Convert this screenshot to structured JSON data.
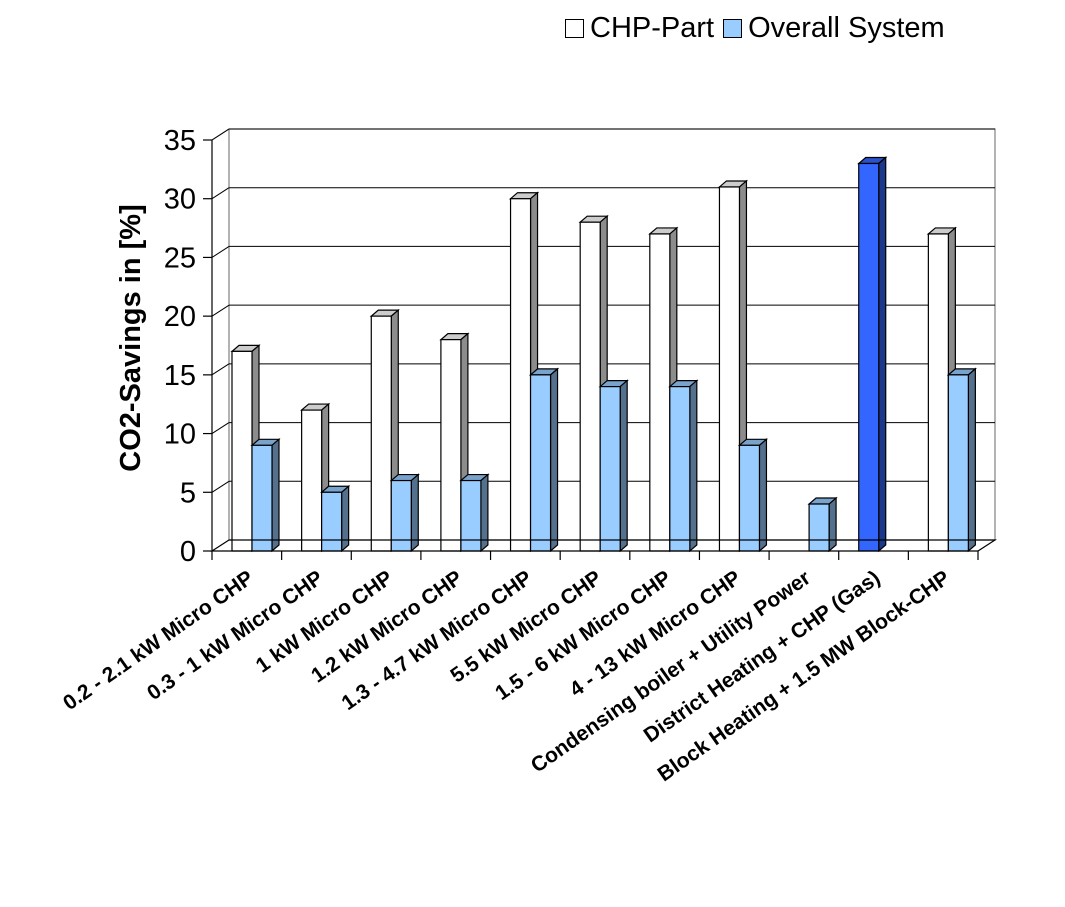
{
  "chart_data": {
    "type": "bar",
    "categories": [
      "0.2 - 2.1 kW Micro CHP",
      "0.3 - 1 kW Micro CHP",
      "1 kW Micro CHP",
      "1.2 kW Micro CHP",
      "1.3 - 4.7 kW Micro CHP",
      "5.5 kW Micro CHP",
      "1.5 - 6 kW Micro CHP",
      "4 - 13 kW Micro CHP",
      "Condensing boiler + Utility Power",
      "District Heating + CHP (Gas)",
      "Block Heating + 1.5 MW Block-CHP"
    ],
    "series": [
      {
        "name": "CHP-Part",
        "values": [
          17,
          12,
          20,
          18,
          30,
          28,
          27,
          31,
          null,
          33,
          27
        ]
      },
      {
        "name": "Overall System",
        "values": [
          9,
          5,
          6,
          6,
          15,
          14,
          14,
          9,
          4,
          null,
          15
        ]
      }
    ],
    "highlight": {
      "category_index": 9,
      "color": "#3366ff"
    },
    "colors": {
      "chp_part": "#ffffff",
      "overall_system": "#99ccff"
    },
    "ylabel": "CO2-Savings in [%]",
    "xlabel": "",
    "ylim": [
      0,
      35
    ],
    "yticks": [
      0,
      5,
      10,
      15,
      20,
      25,
      30,
      35
    ],
    "grid": true,
    "legend_position": "top-right",
    "style": "3d-column"
  }
}
